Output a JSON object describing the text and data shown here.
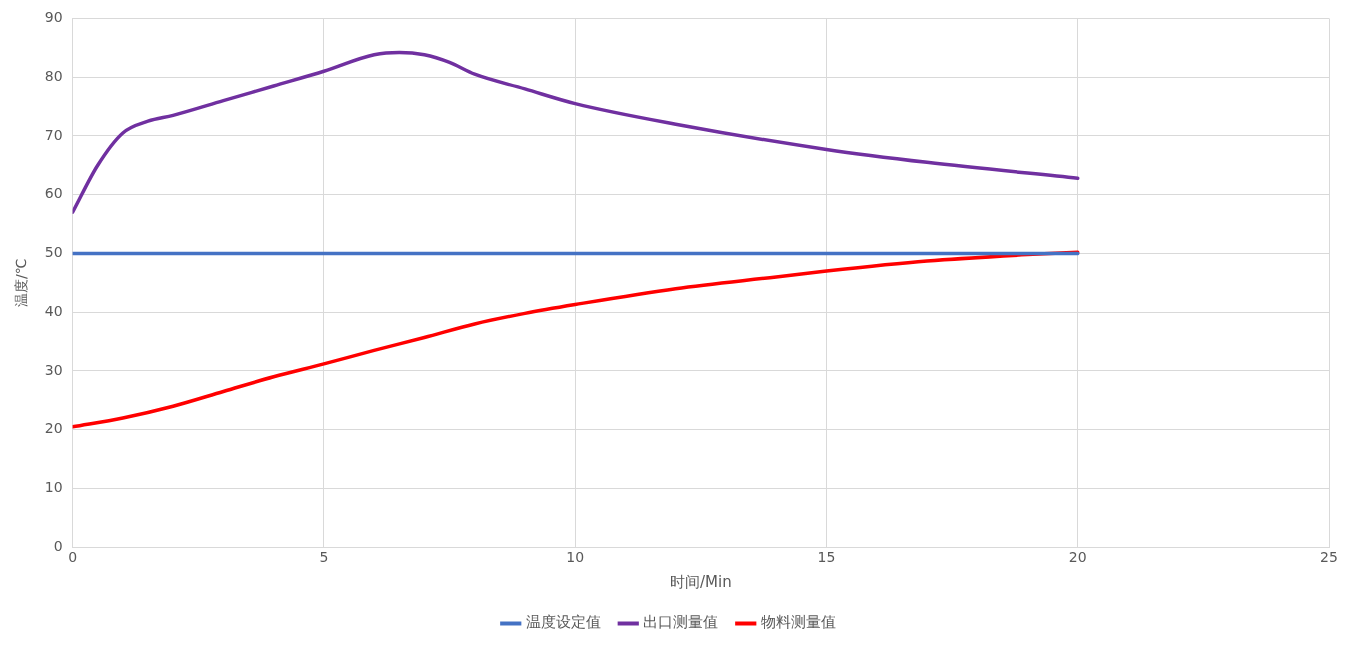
{
  "chart_data": {
    "type": "line",
    "xlabel": "时间/Min",
    "ylabel": "温度/℃",
    "xlim": [
      0,
      25
    ],
    "xticks": [
      0,
      5,
      10,
      15,
      20,
      25
    ],
    "ylim": [
      0,
      90
    ],
    "yticks": [
      0,
      10,
      20,
      30,
      40,
      50,
      60,
      70,
      80,
      90
    ],
    "grid": true,
    "legend": "bottom",
    "marker": "none",
    "line_style": "solid",
    "series": [
      {
        "name": "温度设定值",
        "color": "#4472c4",
        "x": [
          0,
          20
        ],
        "values": [
          50,
          50
        ]
      },
      {
        "name": "出口测量值",
        "color": "#7030a0",
        "x": [
          0,
          0.5,
          1,
          1.5,
          2,
          3,
          4,
          5,
          6,
          6.5,
          7,
          7.5,
          8,
          9,
          10,
          12,
          15,
          17,
          20
        ],
        "values": [
          57,
          65,
          70.5,
          72.5,
          73.5,
          76,
          78.5,
          81,
          83.8,
          84.2,
          83.8,
          82.5,
          80.5,
          78,
          75.5,
          72,
          67.7,
          65.5,
          62.8
        ]
      },
      {
        "name": "物料测量值",
        "color": "#ff0000",
        "x": [
          0,
          1,
          2,
          3,
          4,
          5,
          6,
          7,
          8,
          9,
          10,
          12,
          14,
          15,
          17,
          19,
          20
        ],
        "values": [
          20.5,
          22,
          24,
          26.5,
          29,
          31.2,
          33.5,
          35.7,
          38,
          39.8,
          41.3,
          44,
          46,
          47,
          48.7,
          49.8,
          50.2
        ]
      }
    ]
  }
}
